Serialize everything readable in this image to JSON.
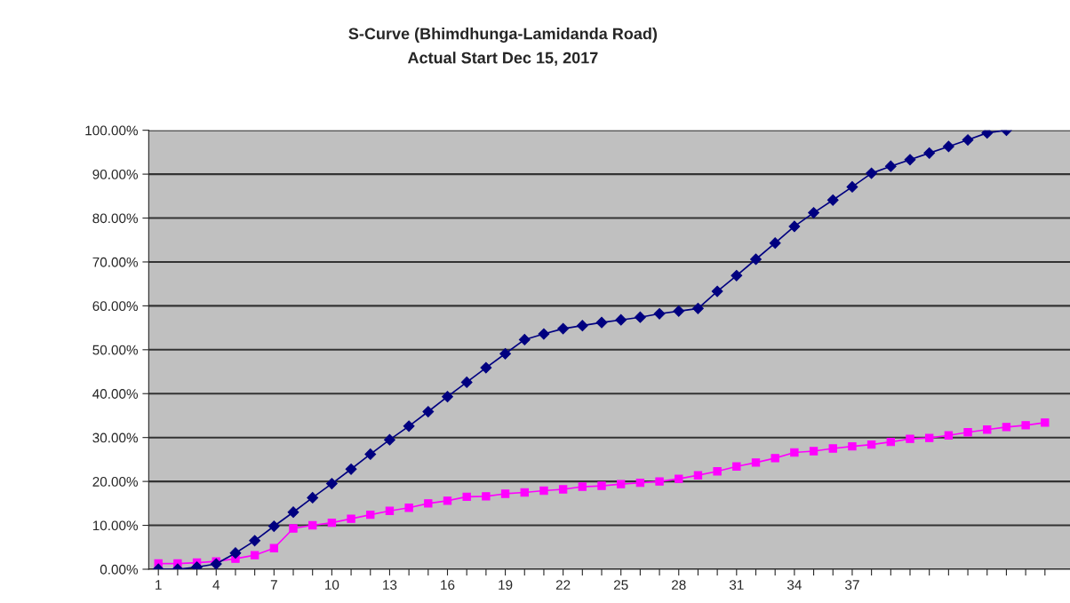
{
  "chart_data": {
    "type": "line",
    "title": "S-Curve (Bhimdhunga-Lamidanda Road)",
    "subtitle": "Actual Start Dec 15, 2017",
    "categories": [
      "1",
      null,
      null,
      "4",
      null,
      null,
      "7",
      null,
      null,
      "10",
      null,
      null,
      "13",
      null,
      null,
      "16",
      null,
      null,
      "19",
      null,
      null,
      "22",
      null,
      null,
      "25",
      null,
      null,
      "28",
      null,
      null,
      "31",
      null,
      null,
      "34",
      null,
      null,
      "37",
      null,
      null,
      null,
      null,
      null,
      null,
      null,
      null,
      null,
      null
    ],
    "series": [
      {
        "color": "#000080",
        "marker": "diamond",
        "values": [
          0,
          0,
          0.5,
          1.2,
          3.7,
          6.5,
          9.8,
          13,
          16.3,
          19.5,
          22.8,
          26.2,
          29.5,
          32.6,
          35.9,
          39.3,
          42.6,
          45.9,
          49.1,
          52.3,
          53.6,
          54.8,
          55.5,
          56.2,
          56.8,
          57.4,
          58.2,
          58.8,
          59.4,
          63.3,
          66.9,
          70.6,
          74.3,
          78.1,
          81.2,
          84.1,
          87.1,
          90.2,
          91.8,
          93.3,
          94.8,
          96.3,
          97.8,
          99.4,
          100,
          null,
          null
        ]
      },
      {
        "color": "#ff00ff",
        "marker": "square",
        "values": [
          1.3,
          1.3,
          1.5,
          1.8,
          2.4,
          3.2,
          4.8,
          9.3,
          10.0,
          10.6,
          11.5,
          12.4,
          13.3,
          14.0,
          15.0,
          15.6,
          16.5,
          16.6,
          17.2,
          17.5,
          17.9,
          18.2,
          18.8,
          19.0,
          19.4,
          19.7,
          20.0,
          20.6,
          21.4,
          22.3,
          23.4,
          24.3,
          25.3,
          26.6,
          26.9,
          27.5,
          28.0,
          28.4,
          29.0,
          29.7,
          29.9,
          30.5,
          31.2,
          31.8,
          32.4,
          32.8,
          33.4
        ]
      }
    ],
    "ylim": [
      0,
      100
    ],
    "yticks": [
      {
        "value": 0,
        "label": "0.00%"
      },
      {
        "value": 10,
        "label": "10.00%"
      },
      {
        "value": 20,
        "label": "20.00%"
      },
      {
        "value": 30,
        "label": "30.00%"
      },
      {
        "value": 40,
        "label": "40.00%"
      },
      {
        "value": 50,
        "label": "50.00%"
      },
      {
        "value": 60,
        "label": "60.00%"
      },
      {
        "value": 70,
        "label": "70.00%"
      },
      {
        "value": 80,
        "label": "80.00%"
      },
      {
        "value": 90,
        "label": "90.00%"
      },
      {
        "value": 100,
        "label": "100.00%"
      }
    ],
    "grid": "y"
  }
}
